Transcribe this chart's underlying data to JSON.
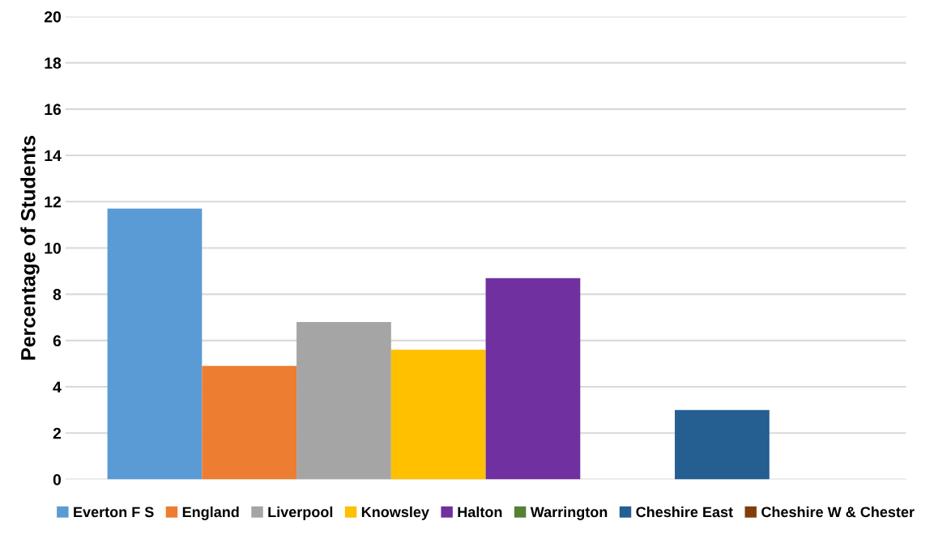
{
  "chart_data": {
    "type": "bar",
    "ylabel": "Percentage of Students",
    "categories": [
      null
    ],
    "series": [
      {
        "name": "Everton F S",
        "color": "#5b9bd5",
        "values": [
          11.7
        ]
      },
      {
        "name": "England",
        "color": "#ed7d31",
        "values": [
          4.9
        ]
      },
      {
        "name": "Liverpool",
        "color": "#a5a5a5",
        "values": [
          6.8
        ]
      },
      {
        "name": "Knowsley",
        "color": "#ffc000",
        "values": [
          5.6
        ]
      },
      {
        "name": "Halton",
        "color": "#7030a0",
        "values": [
          8.7
        ]
      },
      {
        "name": "Warrington",
        "color": "#548235",
        "values": [
          0
        ]
      },
      {
        "name": "Cheshire East",
        "color": "#255e91",
        "values": [
          3.0
        ]
      },
      {
        "name": "Cheshire W & Chester",
        "color": "#843c0c",
        "values": [
          0
        ]
      }
    ],
    "ylim": [
      0,
      20
    ],
    "yticks": [
      0,
      2,
      4,
      6,
      8,
      10,
      12,
      14,
      16,
      18,
      20
    ],
    "grid": "y",
    "legend": "bottom",
    "tick_labels": "y"
  }
}
